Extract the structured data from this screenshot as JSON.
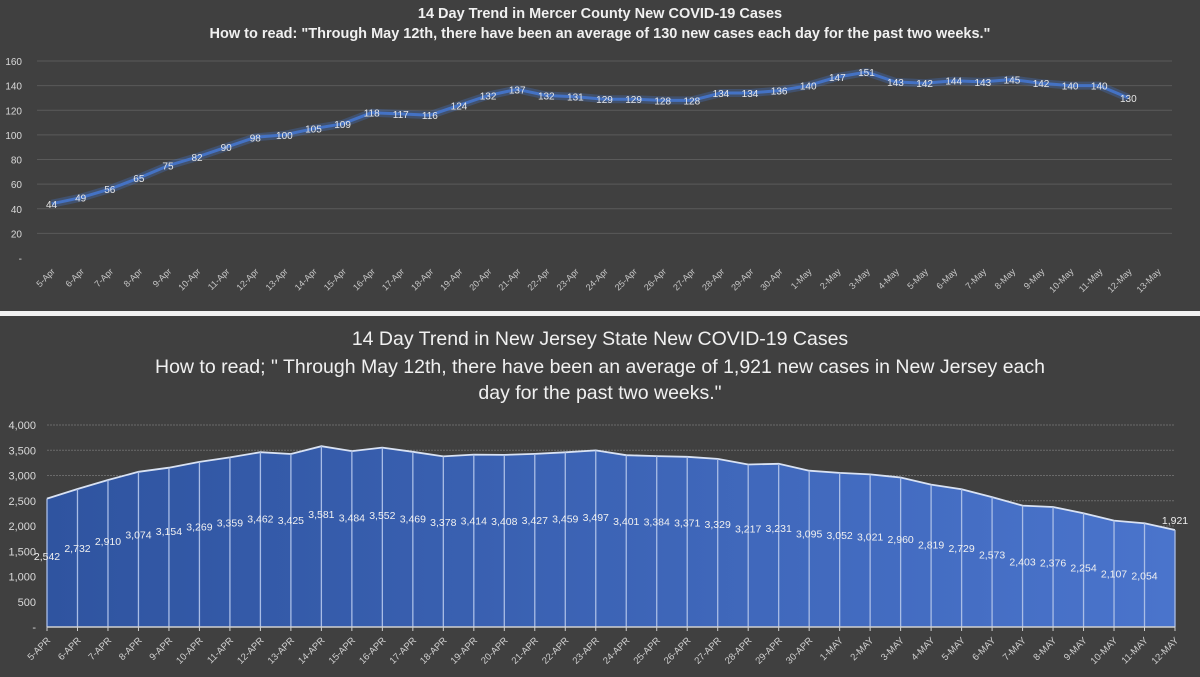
{
  "chart_data": [
    {
      "type": "line",
      "title": "14 Day Trend in Mercer County New COVID-19 Cases",
      "subtitle": "How to read: \"Through May 12th, there have been an average of 130 new cases each day for the past two weeks.\"",
      "xlabel": "",
      "ylabel": "",
      "ylim": [
        0,
        160
      ],
      "yticks": [
        "-",
        "20",
        "40",
        "60",
        "80",
        "100",
        "120",
        "140",
        "160"
      ],
      "ytick_values": [
        0,
        20,
        40,
        60,
        80,
        100,
        120,
        140,
        160
      ],
      "grid": true,
      "line_color": "#4472c4",
      "categories": [
        "5-Apr",
        "6-Apr",
        "7-Apr",
        "8-Apr",
        "9-Apr",
        "10-Apr",
        "11-Apr",
        "12-Apr",
        "13-Apr",
        "14-Apr",
        "15-Apr",
        "16-Apr",
        "17-Apr",
        "18-Apr",
        "19-Apr",
        "20-Apr",
        "21-Apr",
        "22-Apr",
        "23-Apr",
        "24-Apr",
        "25-Apr",
        "26-Apr",
        "27-Apr",
        "28-Apr",
        "29-Apr",
        "30-Apr",
        "1-May",
        "2-May",
        "3-May",
        "4-May",
        "5-May",
        "6-May",
        "7-May",
        "8-May",
        "9-May",
        "10-May",
        "11-May",
        "12-May",
        "13-May"
      ],
      "values": [
        44,
        49,
        56,
        65,
        75,
        82,
        90,
        98,
        100,
        105,
        109,
        118,
        117,
        116,
        124,
        132,
        137,
        132,
        131,
        129,
        129,
        128,
        128,
        134,
        134,
        136,
        140,
        147,
        151,
        143,
        142,
        144,
        143,
        145,
        142,
        140,
        140,
        130,
        null
      ],
      "labels": [
        "44",
        "49",
        "56",
        "65",
        "75",
        "82",
        "90",
        "98",
        "100",
        "105",
        "109",
        "118",
        "117",
        "116",
        "124",
        "132",
        "137",
        "132",
        "131",
        "129",
        "129",
        "128",
        "128",
        "134",
        "134",
        "136",
        "140",
        "147",
        "151",
        "143",
        "142",
        "144",
        "143",
        "145",
        "142",
        "140",
        "140",
        "130"
      ]
    },
    {
      "type": "area",
      "title": "14 Day Trend in New Jersey State New COVID-19 Cases",
      "subtitle_line1": "How to read; \" Through May 12th, there have been an average of 1,921 new cases in New Jersey each",
      "subtitle_line2": "day for the past two weeks.\"",
      "xlabel": "",
      "ylabel": "",
      "ylim": [
        0,
        4000
      ],
      "yticks": [
        "-",
        "500",
        "1,000",
        "1,500",
        "2,000",
        "2,500",
        "3,000",
        "3,500",
        "4,000"
      ],
      "ytick_values": [
        0,
        500,
        1000,
        1500,
        2000,
        2500,
        3000,
        3500,
        4000
      ],
      "grid": true,
      "fill_color": "#4472c4",
      "categories": [
        "5-APR",
        "6-APR",
        "7-APR",
        "8-APR",
        "9-APR",
        "10-APR",
        "11-APR",
        "12-APR",
        "13-APR",
        "14-APR",
        "15-APR",
        "16-APR",
        "17-APR",
        "18-APR",
        "19-APR",
        "20-APR",
        "21-APR",
        "22-APR",
        "23-APR",
        "24-APR",
        "25-APR",
        "26-APR",
        "27-APR",
        "28-APR",
        "29-APR",
        "30-APR",
        "1-MAY",
        "2-MAY",
        "3-MAY",
        "4-MAY",
        "5-MAY",
        "6-MAY",
        "7-MAY",
        "8-MAY",
        "9-MAY",
        "10-MAY",
        "11-MAY",
        "12-MAY"
      ],
      "values": [
        2542,
        2732,
        2910,
        3074,
        3154,
        3269,
        3359,
        3462,
        3425,
        3581,
        3484,
        3552,
        3469,
        3378,
        3414,
        3408,
        3427,
        3459,
        3497,
        3401,
        3384,
        3371,
        3329,
        3217,
        3231,
        3095,
        3052,
        3021,
        2960,
        2819,
        2729,
        2573,
        2403,
        2376,
        2254,
        2107,
        2054,
        1921
      ],
      "labels": [
        "2,542",
        "2,732",
        "2,910",
        "3,074",
        "3,154",
        "3,269",
        "3,359",
        "3,462",
        "3,425",
        "3,581",
        "3,484",
        "3,552",
        "3,469",
        "3,378",
        "3,414",
        "3,408",
        "3,427",
        "3,459",
        "3,497",
        "3,401",
        "3,384",
        "3,371",
        "3,329",
        "3,217",
        "3,231",
        "3,095",
        "3,052",
        "3,021",
        "2,960",
        "2,819",
        "2,729",
        "2,573",
        "2,403",
        "2,376",
        "2,254",
        "2,107",
        "2,054",
        "1,921"
      ]
    }
  ]
}
